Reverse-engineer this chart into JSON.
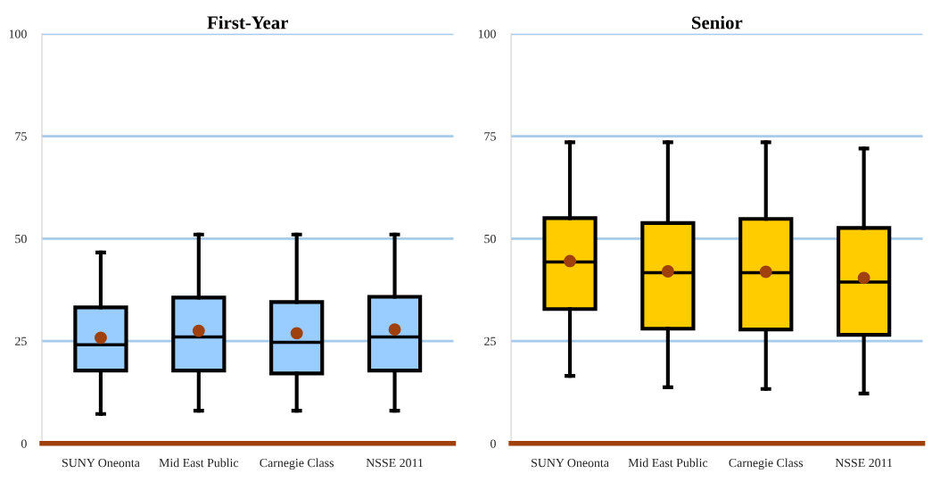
{
  "chart_data": [
    {
      "type": "box",
      "title": "First-Year",
      "categories": [
        "SUNY Oneonta",
        "Mid East Public",
        "Carnegie Class",
        "NSSE 2011"
      ],
      "color": "#99ccff",
      "ylim": [
        0,
        100
      ],
      "yticks": [
        0,
        25,
        50,
        75,
        100
      ],
      "grid": "y",
      "boxes": [
        {
          "low": 7.2,
          "q1": 17.8,
          "median": 24.1,
          "q3": 33.2,
          "high": 46.6,
          "mean": 25.8
        },
        {
          "low": 8,
          "q1": 17.8,
          "median": 26,
          "q3": 35.6,
          "high": 51,
          "mean": 27.5
        },
        {
          "low": 8,
          "q1": 17.1,
          "median": 24.7,
          "q3": 34.5,
          "high": 51,
          "mean": 26.9
        },
        {
          "low": 8,
          "q1": 17.8,
          "median": 26,
          "q3": 35.8,
          "high": 51,
          "mean": 27.8
        }
      ]
    },
    {
      "type": "box",
      "title": "Senior",
      "categories": [
        "SUNY Oneonta",
        "Mid East Public",
        "Carnegie Class",
        "NSSE 2011"
      ],
      "color": "#ffcc00",
      "ylim": [
        0,
        100
      ],
      "yticks": [
        0,
        25,
        50,
        75,
        100
      ],
      "grid": "y",
      "boxes": [
        {
          "low": 16.5,
          "q1": 32.8,
          "median": 44.3,
          "q3": 55,
          "high": 73.5,
          "mean": 44.5
        },
        {
          "low": 13.7,
          "q1": 28,
          "median": 41.7,
          "q3": 53.8,
          "high": 73.5,
          "mean": 42
        },
        {
          "low": 13.3,
          "q1": 27.8,
          "median": 41.7,
          "q3": 54.8,
          "high": 73.5,
          "mean": 41.9
        },
        {
          "low": 12.2,
          "q1": 26.5,
          "median": 39.4,
          "q3": 52.6,
          "high": 72,
          "mean": 40.4
        }
      ]
    }
  ]
}
